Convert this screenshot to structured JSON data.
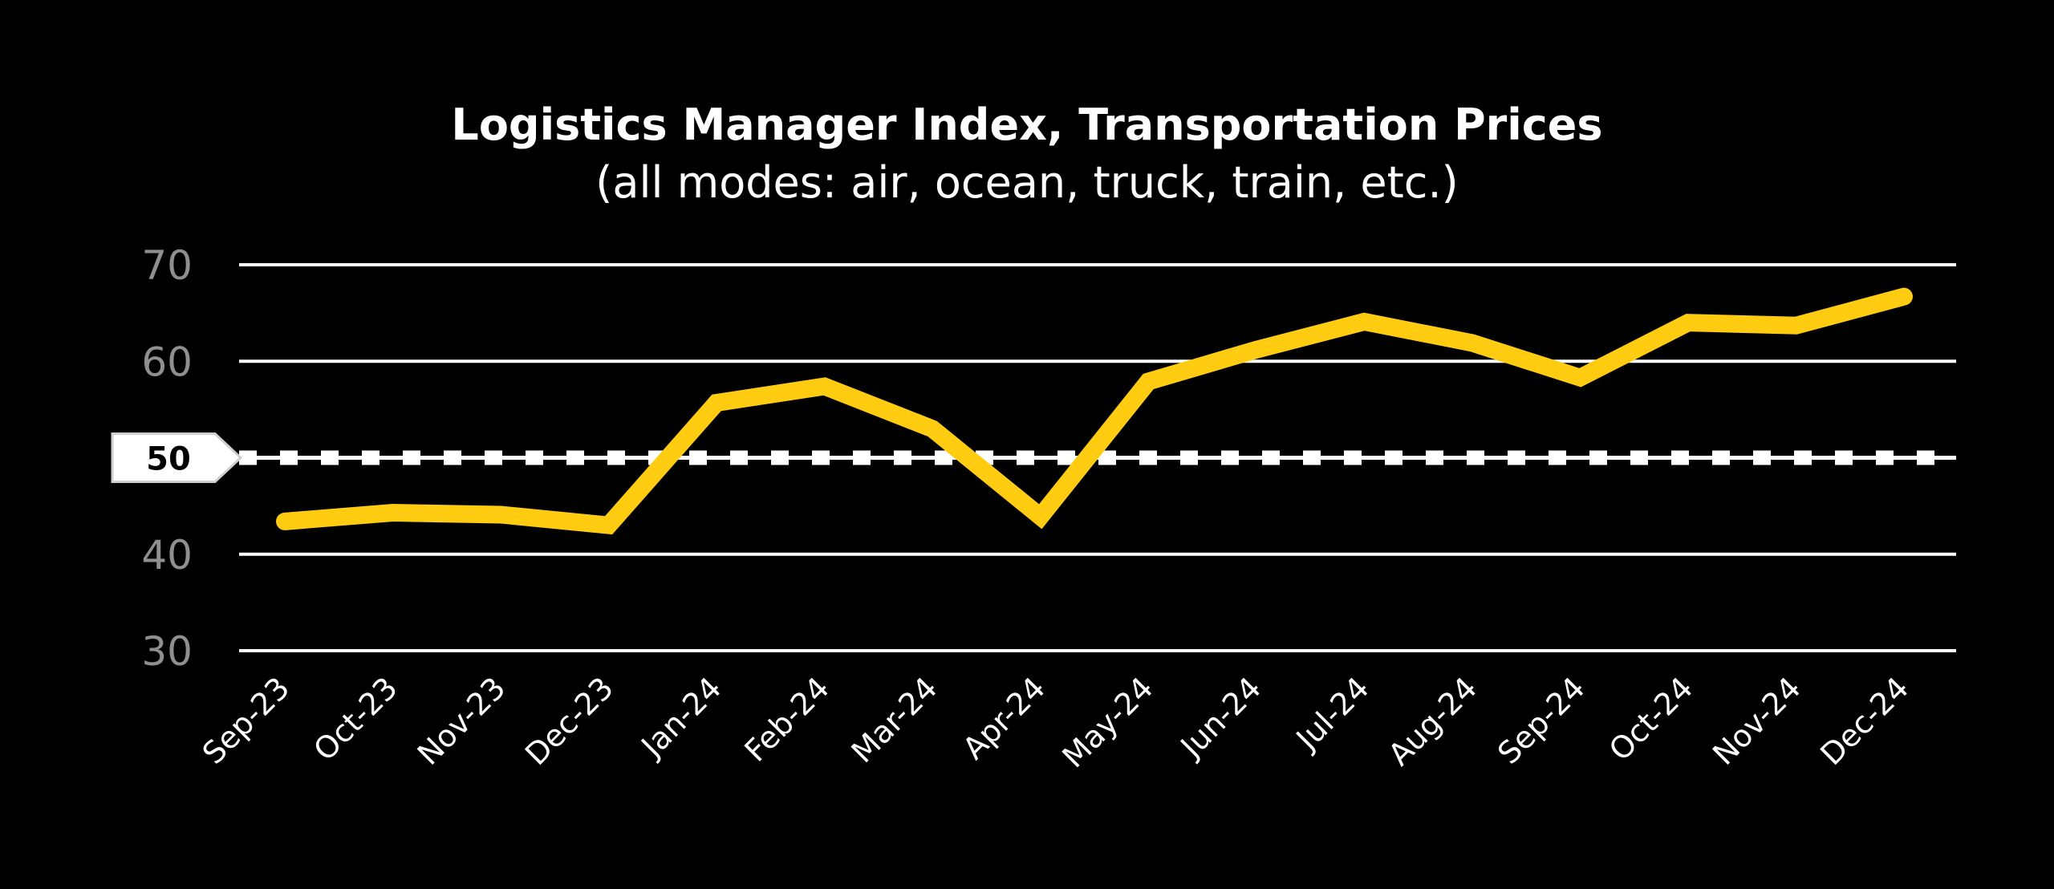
{
  "colors": {
    "background": "#000000",
    "series": "#ffcc11",
    "grid": "#ffffff",
    "tick": "#8f8f8f"
  },
  "chart_data": {
    "type": "line",
    "title": "Logistics Manager Index, Transportation Prices",
    "subtitle": "(all modes: air, ocean, truck, train, etc.)",
    "xlabel": "",
    "ylabel": "",
    "ylim": [
      30,
      70
    ],
    "yticks": [
      30,
      40,
      50,
      60,
      70
    ],
    "grid": true,
    "reference_line": {
      "value": 50,
      "label": "50",
      "style": "dashed"
    },
    "categories": [
      "Sep-23",
      "Oct-23",
      "Nov-23",
      "Dec-23",
      "Jan-24",
      "Feb-24",
      "Mar-24",
      "Apr-24",
      "May-24",
      "Jun-24",
      "Jul-24",
      "Aug-24",
      "Sep-24",
      "Oct-24",
      "Nov-24",
      "Dec-24"
    ],
    "series": [
      {
        "values": [
          43.4,
          44.3,
          44.1,
          43.0,
          55.7,
          57.4,
          53.0,
          43.9,
          57.9,
          61.2,
          64.1,
          61.9,
          58.3,
          64.0,
          63.7,
          66.7
        ]
      }
    ]
  }
}
